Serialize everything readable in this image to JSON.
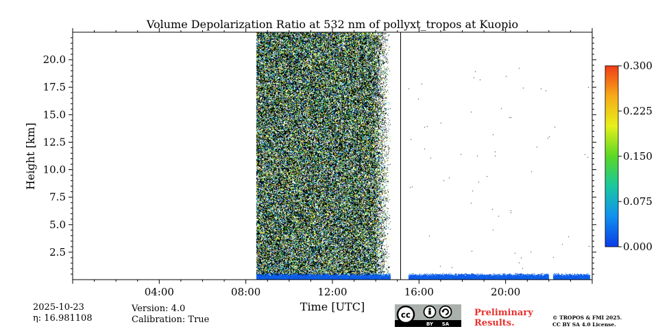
{
  "chart_data": {
    "type": "heatmap",
    "title": "Volume Depolarization Ratio at 532 nm of pollyxt_tropos at Kuopio",
    "xlabel": "Time [UTC]",
    "ylabel": "Height [km]",
    "x_range_hours": [
      0,
      24
    ],
    "ylim": [
      0,
      22.5
    ],
    "x_ticks": [
      {
        "hour": 4,
        "label": "04:00"
      },
      {
        "hour": 8,
        "label": "08:00"
      },
      {
        "hour": 12,
        "label": "12:00"
      },
      {
        "hour": 16,
        "label": "16:00"
      },
      {
        "hour": 20,
        "label": "20:00"
      }
    ],
    "y_ticks": [
      {
        "value": 2.5,
        "label": "2.5"
      },
      {
        "value": 5.0,
        "label": "5.0"
      },
      {
        "value": 7.5,
        "label": "7.5"
      },
      {
        "value": 10.0,
        "label": "10.0"
      },
      {
        "value": 12.5,
        "label": "12.5"
      },
      {
        "value": 15.0,
        "label": "15.0"
      },
      {
        "value": 17.5,
        "label": "17.5"
      },
      {
        "value": 20.0,
        "label": "20.0"
      }
    ],
    "colorbar": {
      "range": [
        0,
        0.3
      ],
      "ticks": [
        {
          "value": 0.0,
          "label": "0.000"
        },
        {
          "value": 0.075,
          "label": "0.075"
        },
        {
          "value": 0.15,
          "label": "0.150"
        },
        {
          "value": 0.225,
          "label": "0.225"
        },
        {
          "value": 0.3,
          "label": "0.300"
        }
      ],
      "colors": [
        "#0a3ce6",
        "#1190f0",
        "#18c8a0",
        "#5ad826",
        "#e6f01a",
        "#f6aa18",
        "#f03c18"
      ]
    },
    "noisy_period_hours": [
      8.5,
      14.7
    ],
    "low_layer": {
      "period_hours": [
        8.5,
        23.9
      ],
      "top_km": 0.6,
      "value": 0.01
    },
    "gaps_hours": [
      [
        14.7,
        15.5
      ],
      [
        22.0,
        22.2
      ]
    ],
    "vertical_marker_hours": 15.15
  },
  "meta": {
    "date": "2025-10-23",
    "eta": "η: 16.981108",
    "version": "Version: 4.0",
    "calibration": "Calibration: True",
    "preliminary": "Preliminary Results.",
    "copyright_line1": "© TROPOS & FMI 2025.",
    "copyright_line2": "CC BY SA 4.0 License.",
    "cc_badge": {
      "by": "BY",
      "sa": "SA"
    }
  }
}
